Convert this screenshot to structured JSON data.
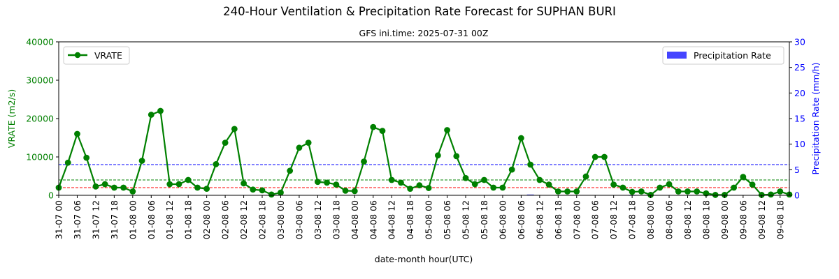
{
  "chart_data": {
    "type": "line",
    "title": "240-Hour Ventilation & Precipitation Rate Forecast for SUPHAN BURI",
    "subtitle": "GFS ini.time: 2025-07-31 00Z",
    "xlabel": "date-month hour(UTC)",
    "ylabel_left": "VRATE (m2/s)",
    "ylabel_right": "Precipitation Rate (mm/h)",
    "ylim_left": [
      0,
      40000
    ],
    "ylim_right": [
      0,
      30
    ],
    "yticks_left": [
      "0",
      "10000",
      "20000",
      "30000",
      "40000"
    ],
    "yticks_right": [
      "0",
      "5",
      "10",
      "15",
      "20",
      "25",
      "30"
    ],
    "x_tick_labels": [
      "31-07 00",
      "31-07 06",
      "31-07 12",
      "31-07 18",
      "01-08 00",
      "01-08 06",
      "01-08 12",
      "01-08 18",
      "02-08 00",
      "02-08 06",
      "02-08 12",
      "02-08 18",
      "03-08 00",
      "03-08 06",
      "03-08 12",
      "03-08 18",
      "04-08 00",
      "04-08 06",
      "04-08 12",
      "04-08 18",
      "05-08 00",
      "05-08 06",
      "05-08 12",
      "05-08 18",
      "06-08 00",
      "06-08 06",
      "06-08 12",
      "06-08 18",
      "07-08 00",
      "07-08 06",
      "07-08 12",
      "07-08 18",
      "08-08 00",
      "08-08 06",
      "08-08 12",
      "08-08 18",
      "09-08 00",
      "09-08 06",
      "09-08 12",
      "09-08 18"
    ],
    "step_hours": 3,
    "series": [
      {
        "name": "VRATE",
        "axis": "left",
        "color": "#008000",
        "values": [
          2000,
          8500,
          16000,
          9800,
          2300,
          2900,
          2000,
          2000,
          1000,
          9000,
          21000,
          22000,
          2900,
          2900,
          4000,
          2000,
          1700,
          8100,
          13700,
          17300,
          3100,
          1500,
          1300,
          200,
          700,
          6400,
          12400,
          13700,
          3500,
          3300,
          2800,
          1200,
          1100,
          8800,
          17800,
          16800,
          4000,
          3300,
          1700,
          2600,
          1900,
          10400,
          17000,
          10200,
          4500,
          2900,
          4000,
          2000,
          2000,
          6700,
          14900,
          8000,
          4000,
          2800,
          1000,
          1000,
          1000,
          4900,
          10000,
          10000,
          2800,
          2000,
          900,
          1000,
          100,
          2000,
          2900,
          1000,
          1000,
          1000,
          500,
          100,
          100,
          2000,
          4800,
          2800,
          100,
          200,
          1000,
          200
        ]
      },
      {
        "name": "Precipitation Rate",
        "axis": "right",
        "color": "#4444ff",
        "values": [
          0,
          0,
          0,
          0,
          0,
          0,
          0,
          0,
          0,
          0,
          0,
          0,
          0,
          0,
          0,
          0,
          0,
          0,
          0,
          0,
          0,
          0,
          0,
          0,
          0,
          0,
          0,
          0,
          0,
          0,
          0,
          0,
          0,
          0,
          0,
          0,
          0,
          0,
          0,
          0,
          0,
          0,
          0,
          0,
          0,
          0,
          0,
          0,
          0,
          0,
          0,
          0.15,
          0,
          0,
          0,
          0,
          0,
          0,
          0,
          0,
          0,
          0,
          0.05,
          0,
          0,
          0,
          0,
          0,
          0,
          0,
          0,
          0,
          0,
          0,
          0,
          0,
          0,
          0,
          0,
          0
        ]
      }
    ],
    "reference_lines": [
      {
        "axis": "left",
        "value": 2000,
        "color": "#ff0000"
      },
      {
        "axis": "left",
        "value": 4000,
        "color": "#008000"
      },
      {
        "axis": "right",
        "value": 6,
        "color": "#0000ff"
      }
    ],
    "legend_left_placement": "top-left",
    "legend_right_placement": "top-right",
    "grid": false
  }
}
